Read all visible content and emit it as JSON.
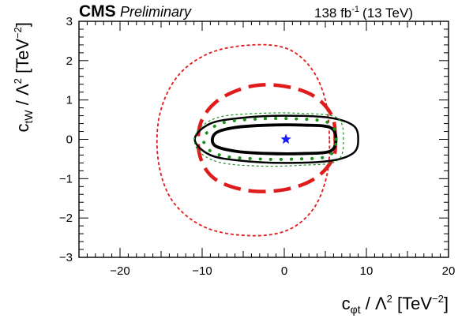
{
  "header": {
    "experiment": "CMS",
    "status": "Preliminary",
    "luminosity": "138 fb",
    "luminosity_exponent": "-1",
    "energy": "(13 TeV)"
  },
  "chart_data": {
    "type": "scatter",
    "title": "",
    "xlabel": "c_φt / Λ² [TeV⁻²]",
    "ylabel": "c_tW / Λ² [TeV⁻²]",
    "xlabel_parts": {
      "c": "c",
      "sub": "φt",
      "mid": " / Λ",
      "sup": "2",
      "unit": " [TeV",
      "unit_sup": "−2",
      "close": "]"
    },
    "ylabel_parts": {
      "c": "c",
      "sub": "tW",
      "mid": " / Λ",
      "sup": "2",
      "unit": " [TeV",
      "unit_sup": "−2",
      "close": "]"
    },
    "xlim": [
      -25,
      20
    ],
    "ylim": [
      -3,
      3
    ],
    "x_ticks": [
      -20,
      -10,
      0,
      10,
      20
    ],
    "y_ticks": [
      -3,
      -2,
      -1,
      0,
      1,
      2,
      3
    ],
    "x_tick_labels": [
      "−20",
      "−10",
      "0",
      "10",
      "20"
    ],
    "y_tick_labels": [
      "−3",
      "−2",
      "−1",
      "0",
      "1",
      "2",
      "3"
    ],
    "grid": false,
    "best_fit": {
      "x": 0.2,
      "y": 0.0,
      "marker": "star",
      "color": "#1a1aff"
    },
    "contours": [
      {
        "style": "dotted",
        "color": "#e01b1b",
        "width": 1.8,
        "points": [
          [
            5.5,
            0
          ],
          [
            5.0,
            1.0
          ],
          [
            3.3,
            1.8
          ],
          [
            0.4,
            2.3
          ],
          [
            -3.8,
            2.4
          ],
          [
            -9,
            2.2
          ],
          [
            -13,
            1.6
          ],
          [
            -15.2,
            0.6
          ],
          [
            -15.3,
            -0.6
          ],
          [
            -13.5,
            -1.6
          ],
          [
            -9.5,
            -2.25
          ],
          [
            -4,
            -2.45
          ],
          [
            0.5,
            -2.3
          ],
          [
            3.6,
            -1.75
          ],
          [
            5.2,
            -0.9
          ],
          [
            5.5,
            0
          ]
        ]
      },
      {
        "style": "dashed",
        "color": "#e01b1b",
        "width": 4.5,
        "points": [
          [
            6.2,
            0
          ],
          [
            5.8,
            0.6
          ],
          [
            3.6,
            1.1
          ],
          [
            0,
            1.35
          ],
          [
            -4,
            1.35
          ],
          [
            -8,
            1.0
          ],
          [
            -10.2,
            0.4
          ],
          [
            -10.3,
            -0.4
          ],
          [
            -8.5,
            -1.0
          ],
          [
            -4.5,
            -1.3
          ],
          [
            0,
            -1.28
          ],
          [
            3.7,
            -1.0
          ],
          [
            5.9,
            -0.5
          ],
          [
            6.2,
            0
          ]
        ]
      },
      {
        "style": "solid",
        "color": "#000000",
        "width": 2.5,
        "points": [
          [
            9.0,
            0
          ],
          [
            8.4,
            0.35
          ],
          [
            5.5,
            0.55
          ],
          [
            0,
            0.6
          ],
          [
            -5,
            0.55
          ],
          [
            -9,
            0.4
          ],
          [
            -10.9,
            0
          ],
          [
            -9,
            -0.4
          ],
          [
            -5,
            -0.55
          ],
          [
            0,
            -0.6
          ],
          [
            5.5,
            -0.55
          ],
          [
            8.4,
            -0.35
          ],
          [
            9.0,
            0
          ]
        ]
      },
      {
        "style": "solid",
        "color": "#000000",
        "width": 3.8,
        "points": [
          [
            6.3,
            0
          ],
          [
            5.6,
            0.3
          ],
          [
            2.5,
            0.36
          ],
          [
            -2,
            0.36
          ],
          [
            -6,
            0.3
          ],
          [
            -8.4,
            0.15
          ],
          [
            -8.5,
            -0.15
          ],
          [
            -6,
            -0.3
          ],
          [
            -2,
            -0.36
          ],
          [
            2.5,
            -0.36
          ],
          [
            5.6,
            -0.3
          ],
          [
            6.3,
            0
          ]
        ]
      },
      {
        "style": "dotted",
        "color": "#1f8f1f",
        "width": 4.0,
        "points": [
          [
            6.3,
            0
          ],
          [
            5.4,
            0.42
          ],
          [
            1.5,
            0.52
          ],
          [
            -3,
            0.52
          ],
          [
            -7.5,
            0.42
          ],
          [
            -9.6,
            0.12
          ],
          [
            -9.5,
            -0.2
          ],
          [
            -7.5,
            -0.42
          ],
          [
            -3,
            -0.5
          ],
          [
            1.5,
            -0.5
          ],
          [
            5.4,
            -0.42
          ],
          [
            6.3,
            0
          ]
        ]
      },
      {
        "style": "dotted",
        "color": "#1f8f1f",
        "width": 1.2,
        "points": [
          [
            7.2,
            0
          ],
          [
            6.4,
            0.55
          ],
          [
            2,
            0.66
          ],
          [
            -3,
            0.66
          ],
          [
            -8,
            0.56
          ],
          [
            -10.6,
            0.2
          ],
          [
            -10.6,
            -0.25
          ],
          [
            -8,
            -0.58
          ],
          [
            -3,
            -0.68
          ],
          [
            2,
            -0.66
          ],
          [
            6.4,
            -0.55
          ],
          [
            7.2,
            0
          ]
        ]
      }
    ]
  }
}
